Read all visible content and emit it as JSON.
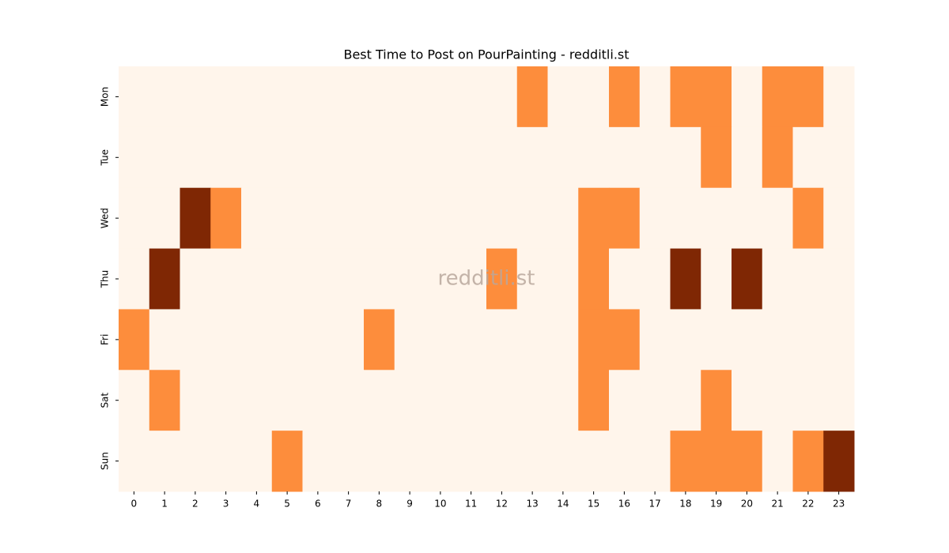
{
  "chart_data": {
    "type": "heatmap",
    "title": "Best Time to Post on PourPainting - redditli.st",
    "watermark": "redditli.st",
    "x": [
      "0",
      "1",
      "2",
      "3",
      "4",
      "5",
      "6",
      "7",
      "8",
      "9",
      "10",
      "11",
      "12",
      "13",
      "14",
      "15",
      "16",
      "17",
      "18",
      "19",
      "20",
      "21",
      "22",
      "23"
    ],
    "y": [
      "Mon",
      "Tue",
      "Wed",
      "Thu",
      "Fri",
      "Sat",
      "Sun"
    ],
    "values": [
      [
        0,
        0,
        0,
        0,
        0,
        0,
        0,
        0,
        0,
        0,
        0,
        0,
        0,
        1,
        0,
        0,
        1,
        0,
        1,
        1,
        0,
        1,
        1,
        0
      ],
      [
        0,
        0,
        0,
        0,
        0,
        0,
        0,
        0,
        0,
        0,
        0,
        0,
        0,
        0,
        0,
        0,
        0,
        0,
        0,
        1,
        0,
        1,
        0,
        0
      ],
      [
        0,
        0,
        2,
        1,
        0,
        0,
        0,
        0,
        0,
        0,
        0,
        0,
        0,
        0,
        0,
        1,
        1,
        0,
        0,
        0,
        0,
        0,
        1,
        0
      ],
      [
        0,
        2,
        0,
        0,
        0,
        0,
        0,
        0,
        0,
        0,
        0,
        0,
        1,
        0,
        0,
        1,
        0,
        0,
        2,
        0,
        2,
        0,
        0,
        0
      ],
      [
        1,
        0,
        0,
        0,
        0,
        0,
        0,
        0,
        1,
        0,
        0,
        0,
        0,
        0,
        0,
        1,
        1,
        0,
        0,
        0,
        0,
        0,
        0,
        0
      ],
      [
        0,
        1,
        0,
        0,
        0,
        0,
        0,
        0,
        0,
        0,
        0,
        0,
        0,
        0,
        0,
        1,
        0,
        0,
        0,
        1,
        0,
        0,
        0,
        0
      ],
      [
        0,
        0,
        0,
        0,
        0,
        1,
        0,
        0,
        0,
        0,
        0,
        0,
        0,
        0,
        0,
        0,
        0,
        0,
        1,
        1,
        1,
        0,
        1,
        2
      ]
    ],
    "zlim": [
      0,
      2
    ],
    "colorscale": [
      "#fff5eb",
      "#fd8d3c",
      "#7f2704"
    ]
  }
}
